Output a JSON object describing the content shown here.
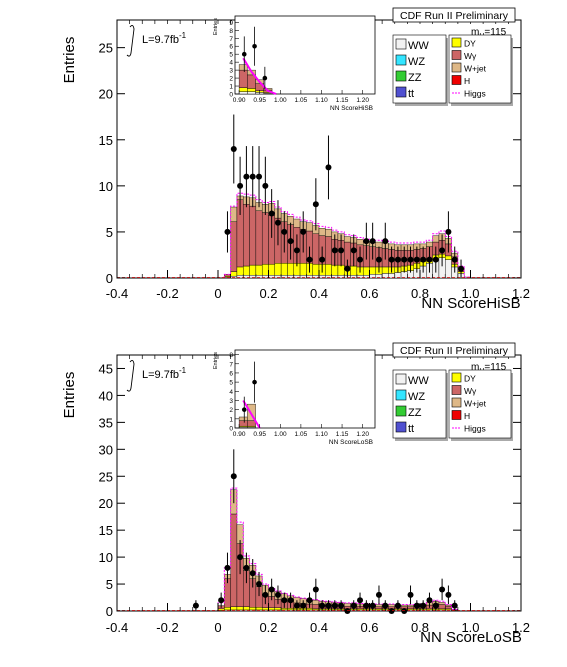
{
  "colors": {
    "WW": "#f2f2f2",
    "WZ": "#33e5ff",
    "ZZ": "#33cc33",
    "tt": "#5050d0",
    "DY": "#ffff00",
    "Wg": "#cc6666",
    "Wjet": "#deb887",
    "H": "#ee0000",
    "Higgs": "#ff00ff"
  },
  "chart_data": [
    {
      "type": "bar",
      "stacked": true,
      "xlabel": "NN ScoreHiSB",
      "ylabel": "Entries",
      "xlim": [
        -0.4,
        1.2
      ],
      "ylim": [
        0,
        28
      ],
      "yticks": [
        0,
        5,
        10,
        15,
        20,
        25
      ],
      "xticks": [
        -0.4,
        -0.2,
        0.0,
        0.2,
        0.4,
        0.6,
        0.8,
        1.0,
        1.2
      ],
      "annotations": {
        "lumi": "L=9.7fb",
        "lumi_sup": "-1",
        "title": "CDF Run II Preliminary",
        "mass": "m",
        "mass_sub": "H",
        "mass_val": "=115"
      },
      "bin_width": 0.025,
      "bins_x": [
        0.025,
        0.05,
        0.075,
        0.1,
        0.125,
        0.15,
        0.175,
        0.2,
        0.225,
        0.25,
        0.275,
        0.3,
        0.325,
        0.35,
        0.375,
        0.4,
        0.425,
        0.45,
        0.475,
        0.5,
        0.525,
        0.55,
        0.575,
        0.6,
        0.625,
        0.65,
        0.675,
        0.7,
        0.725,
        0.75,
        0.775,
        0.8,
        0.825,
        0.85,
        0.875,
        0.9,
        0.925,
        0.95,
        0.975
      ],
      "series": [
        {
          "name": "WW",
          "values": [
            0.1,
            0.2,
            0.3,
            0.3,
            0.3,
            0.3,
            0.3,
            0.3,
            0.3,
            0.3,
            0.3,
            0.3,
            0.3,
            0.3,
            0.3,
            0.3,
            0.3,
            0.3,
            0.3,
            0.3,
            0.3,
            0.3,
            0.3,
            0.4,
            0.4,
            0.5,
            0.5,
            0.6,
            0.7,
            0.8,
            1.0,
            1.3,
            1.6,
            2.0,
            2.2,
            2.0,
            1.2,
            0.5,
            0.1
          ]
        },
        {
          "name": "DY",
          "values": [
            0.1,
            0.5,
            0.9,
            1.0,
            1.1,
            1.1,
            1.2,
            1.2,
            1.3,
            1.3,
            1.3,
            1.3,
            1.3,
            1.3,
            1.2,
            1.2,
            1.2,
            1.1,
            1.1,
            1.0,
            1.0,
            0.9,
            0.9,
            0.8,
            0.8,
            0.7,
            0.7,
            0.6,
            0.6,
            0.6,
            0.6,
            0.5,
            0.5,
            0.5,
            0.4,
            0.4,
            0.3,
            0.2,
            0.0
          ]
        },
        {
          "name": "Wγ",
          "values": [
            0.2,
            5.4,
            7.3,
            6.7,
            6.4,
            5.9,
            5.6,
            5.3,
            4.9,
            4.5,
            4.2,
            3.9,
            3.7,
            3.5,
            3.3,
            3.1,
            3.0,
            2.8,
            2.7,
            2.6,
            2.5,
            2.4,
            2.3,
            2.2,
            2.1,
            2.0,
            1.9,
            1.8,
            1.7,
            1.6,
            1.5,
            1.4,
            1.3,
            1.4,
            1.5,
            1.3,
            0.8,
            0.3,
            0.0
          ]
        },
        {
          "name": "W+jet",
          "values": [
            0.0,
            1.6,
            0.4,
            0.8,
            0.9,
            0.9,
            0.9,
            1.3,
            1.0,
            0.9,
            0.9,
            0.9,
            0.8,
            0.9,
            0.9,
            0.8,
            0.8,
            0.8,
            0.7,
            0.6,
            0.6,
            0.6,
            0.5,
            0.5,
            0.6,
            0.6,
            0.6,
            0.6,
            0.6,
            0.6,
            0.6,
            0.5,
            0.5,
            0.7,
            0.7,
            0.6,
            0.4,
            0.2,
            0.0
          ]
        }
      ],
      "higgs": [
        0.4,
        7.8,
        9.2,
        9.1,
        9.0,
        8.5,
        8.2,
        8.3,
        7.7,
        7.2,
        6.9,
        6.6,
        6.3,
        6.2,
        5.9,
        5.6,
        5.5,
        5.2,
        5.0,
        4.7,
        4.6,
        4.4,
        4.2,
        4.1,
        4.1,
        4.0,
        3.9,
        3.8,
        3.8,
        3.8,
        3.9,
        3.9,
        4.1,
        4.8,
        5.1,
        4.5,
        2.9,
        1.3,
        0.1
      ],
      "data_points": {
        "x": [
          0.0375,
          0.0625,
          0.0875,
          0.1125,
          0.1375,
          0.1625,
          0.1875,
          0.2125,
          0.2375,
          0.2625,
          0.2875,
          0.3125,
          0.3375,
          0.3625,
          0.3875,
          0.4125,
          0.4375,
          0.4625,
          0.4875,
          0.5125,
          0.5375,
          0.5625,
          0.5875,
          0.6125,
          0.6375,
          0.6625,
          0.6875,
          0.7125,
          0.7375,
          0.7625,
          0.7875,
          0.8125,
          0.8375,
          0.8625,
          0.8875,
          0.9125,
          0.9375,
          0.9625
        ],
        "y": [
          5,
          14,
          10,
          11,
          11,
          11,
          10,
          7,
          6,
          5,
          4,
          3,
          5,
          2,
          8,
          2,
          12,
          3,
          3,
          1,
          3,
          2,
          4,
          4,
          2,
          4,
          2,
          2,
          2,
          2,
          2,
          2,
          2,
          2,
          3,
          5,
          2,
          1
        ]
      },
      "inset": {
        "xlabel": "NN ScoreHiSB",
        "ylabel": "Entries",
        "xlim": [
          0.89,
          1.23
        ],
        "ylim": [
          0,
          9.8
        ],
        "yticks": [
          0,
          1,
          2,
          3,
          4,
          5,
          6,
          7,
          8,
          9
        ],
        "xticks": [
          0.9,
          0.95,
          1.0,
          1.05,
          1.1,
          1.15,
          1.2
        ],
        "bins_x": [
          0.9,
          0.92,
          0.94,
          0.96,
          0.98
        ],
        "bin_width": 0.02,
        "stack": [
          {
            "name": "WW",
            "values": [
              0.3,
              0.3,
              0.2,
              0.1,
              0.0
            ]
          },
          {
            "name": "DY",
            "values": [
              0.5,
              0.4,
              0.2,
              0.1,
              0.0
            ]
          },
          {
            "name": "Wγ",
            "values": [
              2.2,
              1.7,
              0.9,
              0.3,
              0.0
            ]
          },
          {
            "name": "W+jet",
            "values": [
              0.7,
              0.6,
              0.5,
              0.2,
              0.0
            ]
          }
        ],
        "higgs": [
          4.5,
          2.8,
          1.5,
          0.4,
          0.0
        ],
        "data_points": {
          "x": [
            0.9125,
            0.9375,
            0.9625
          ],
          "y": [
            5,
            6,
            2
          ]
        }
      }
    },
    {
      "type": "bar",
      "stacked": true,
      "xlabel": "NN ScoreLoSB",
      "ylabel": "Entries",
      "xlim": [
        -0.4,
        1.2
      ],
      "ylim": [
        0,
        47.5
      ],
      "yticks": [
        0,
        5,
        10,
        15,
        20,
        25,
        30,
        35,
        40,
        45
      ],
      "xticks": [
        -0.4,
        -0.2,
        0.0,
        0.2,
        0.4,
        0.6,
        0.8,
        1.0,
        1.2
      ],
      "annotations": {
        "lumi": "L=9.7fb",
        "lumi_sup": "-1",
        "title": "CDF Run II Preliminary",
        "mass": "m",
        "mass_sub": "H",
        "mass_val": "=115"
      },
      "bin_width": 0.025,
      "bins_x": [
        0.0,
        0.025,
        0.05,
        0.075,
        0.1,
        0.125,
        0.15,
        0.175,
        0.2,
        0.225,
        0.25,
        0.275,
        0.3,
        0.325,
        0.35,
        0.375,
        0.4,
        0.425,
        0.45,
        0.475,
        0.5,
        0.525,
        0.55,
        0.575,
        0.6,
        0.625,
        0.65,
        0.675,
        0.7,
        0.725,
        0.75,
        0.775,
        0.8,
        0.825,
        0.85,
        0.875,
        0.9,
        0.925
      ],
      "series": [
        {
          "name": "WW",
          "values": [
            0.1,
            0.2,
            0.2,
            0.2,
            0.2,
            0.2,
            0.2,
            0.2,
            0.2,
            0.2,
            0.2,
            0.2,
            0.2,
            0.2,
            0.2,
            0.2,
            0.2,
            0.2,
            0.2,
            0.2,
            0.2,
            0.2,
            0.2,
            0.2,
            0.2,
            0.2,
            0.2,
            0.2,
            0.2,
            0.2,
            0.2,
            0.2,
            0.2,
            0.2,
            0.2,
            0.2,
            0.2,
            0.1
          ]
        },
        {
          "name": "DY",
          "values": [
            0.3,
            0.5,
            0.6,
            0.6,
            0.6,
            0.5,
            0.5,
            0.4,
            0.4,
            0.4,
            0.3,
            0.3,
            0.3,
            0.3,
            0.3,
            0.2,
            0.2,
            0.2,
            0.2,
            0.2,
            0.2,
            0.2,
            0.2,
            0.2,
            0.2,
            0.2,
            0.2,
            0.2,
            0.2,
            0.2,
            0.2,
            0.2,
            0.2,
            0.2,
            0.2,
            0.2,
            0.2,
            0.1
          ]
        },
        {
          "name": "Wγ",
          "values": [
            0.6,
            5.3,
            17.2,
            11.7,
            6.7,
            5.3,
            3.8,
            2.4,
            2.1,
            1.6,
            1.4,
            1.2,
            1.0,
            0.9,
            0.8,
            0.8,
            0.7,
            0.7,
            0.6,
            0.6,
            0.5,
            0.5,
            0.5,
            0.4,
            0.4,
            0.4,
            0.4,
            0.4,
            0.4,
            0.4,
            0.4,
            0.4,
            0.5,
            0.7,
            0.9,
            0.8,
            0.5,
            0.1
          ]
        },
        {
          "name": "W+jet",
          "values": [
            0.0,
            0.8,
            4.5,
            3.5,
            2.3,
            2.5,
            2.0,
            1.8,
            1.5,
            1.4,
            1.3,
            1.1,
            1.0,
            0.9,
            0.8,
            0.8,
            0.7,
            0.6,
            0.6,
            0.5,
            0.5,
            0.5,
            0.4,
            0.4,
            0.4,
            0.4,
            0.4,
            0.4,
            0.3,
            0.3,
            0.3,
            0.3,
            0.3,
            0.5,
            0.5,
            0.4,
            0.2,
            0.0
          ]
        }
      ],
      "higgs": [
        1.5,
        8.0,
        22.8,
        16.5,
        10.2,
        8.8,
        6.8,
        5.0,
        4.3,
        3.7,
        3.3,
        2.9,
        2.6,
        2.4,
        2.2,
        2.1,
        1.9,
        1.8,
        1.7,
        1.6,
        1.5,
        1.5,
        1.4,
        1.3,
        1.3,
        1.3,
        1.3,
        1.3,
        1.2,
        1.2,
        1.2,
        1.2,
        1.3,
        1.7,
        2.0,
        1.8,
        1.2,
        0.3
      ],
      "data_points": {
        "x": [
          -0.0875,
          0.0125,
          0.0375,
          0.0625,
          0.0875,
          0.1125,
          0.1375,
          0.1625,
          0.1875,
          0.2125,
          0.2375,
          0.2625,
          0.2875,
          0.3125,
          0.3375,
          0.3625,
          0.3875,
          0.4125,
          0.4375,
          0.4625,
          0.4875,
          0.5125,
          0.5375,
          0.5625,
          0.5875,
          0.6125,
          0.6375,
          0.6625,
          0.6875,
          0.7125,
          0.7375,
          0.7625,
          0.7875,
          0.8125,
          0.8375,
          0.8625,
          0.8875,
          0.9125,
          0.9375
        ],
        "y": [
          1,
          2,
          8,
          25,
          10,
          8,
          7,
          5,
          3,
          4,
          3,
          2,
          2,
          1,
          1,
          2,
          4,
          1,
          1,
          1,
          1,
          0,
          1,
          2,
          1,
          1,
          3,
          1,
          0,
          1,
          0,
          3,
          1,
          1,
          2,
          1,
          4,
          3,
          1
        ]
      },
      "inset": {
        "xlabel": "NN ScoreLoSB",
        "ylabel": "Entries",
        "xlim": [
          0.89,
          1.23
        ],
        "ylim": [
          0,
          8.5
        ],
        "yticks": [
          0,
          1,
          2,
          3,
          4,
          5,
          6,
          7,
          8
        ],
        "xticks": [
          0.9,
          0.95,
          1.0,
          1.05,
          1.1,
          1.15,
          1.2
        ],
        "bins_x": [
          0.9,
          0.92,
          0.94
        ],
        "bin_width": 0.02,
        "stack": [
          {
            "name": "WW",
            "values": [
              0.1,
              0.1,
              0.0
            ]
          },
          {
            "name": "DY",
            "values": [
              0.1,
              0.1,
              0.0
            ]
          },
          {
            "name": "Wγ",
            "values": [
              0.6,
              0.6,
              0.0
            ]
          },
          {
            "name": "W+jet",
            "values": [
              0.4,
              1.8,
              0.0
            ]
          }
        ],
        "higgs": [
          3.0,
          1.5,
          0.0
        ],
        "data_points": {
          "x": [
            0.9125,
            0.9375
          ],
          "y": [
            2,
            5
          ]
        }
      }
    }
  ],
  "legend": {
    "left": [
      {
        "key": "WW",
        "label": "WW"
      },
      {
        "key": "WZ",
        "label": "WZ"
      },
      {
        "key": "ZZ",
        "label": "ZZ"
      },
      {
        "key": "tt",
        "label": "tt"
      }
    ],
    "right": [
      {
        "key": "DY",
        "label": "DY"
      },
      {
        "key": "Wg",
        "label": "Wγ"
      },
      {
        "key": "Wjet",
        "label": "W+jet"
      },
      {
        "key": "H",
        "label": "H"
      },
      {
        "key": "Higgs",
        "label": "Higgs"
      }
    ]
  }
}
